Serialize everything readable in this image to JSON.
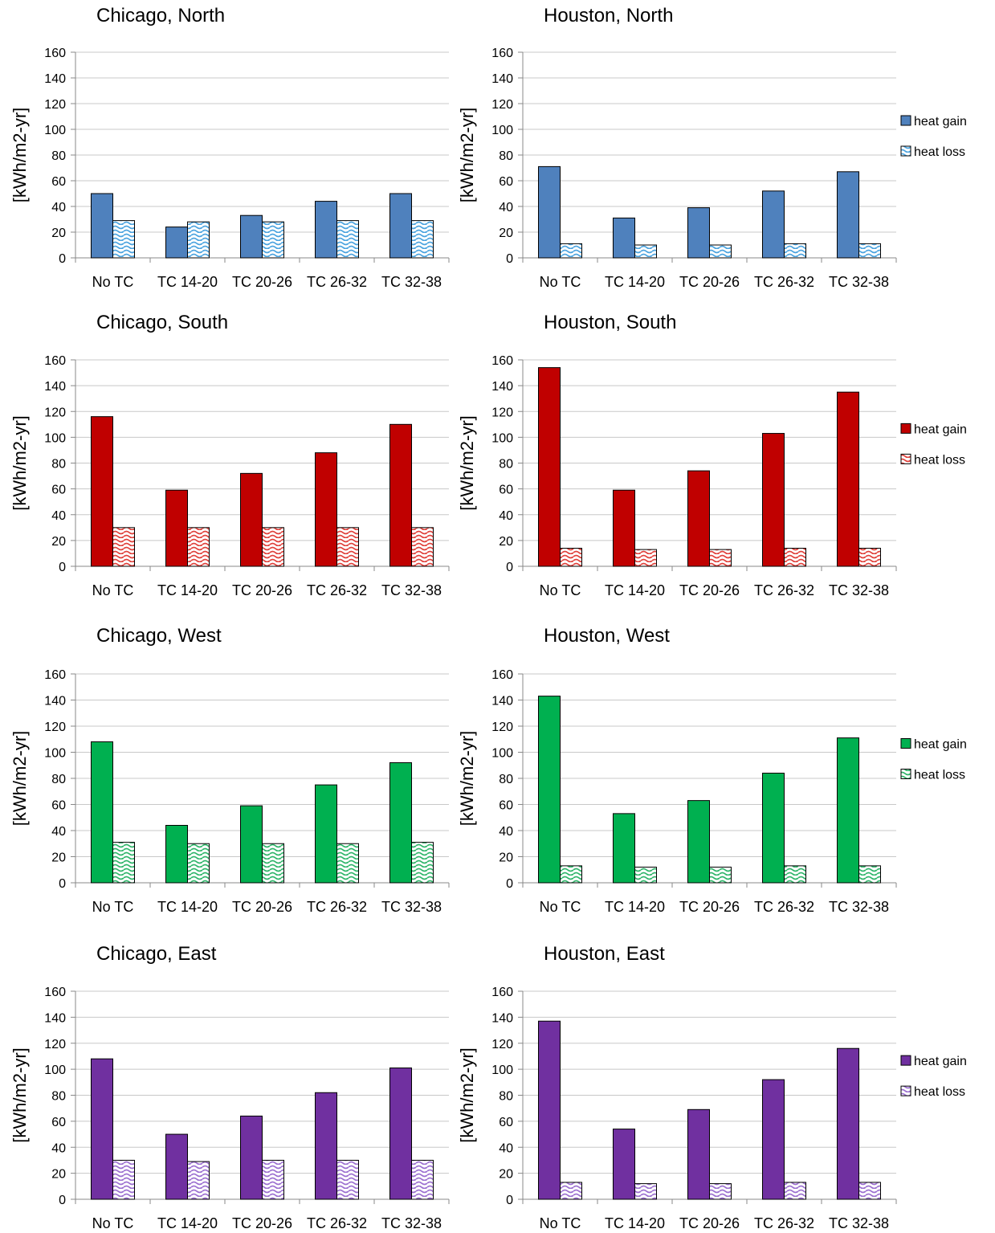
{
  "chart_data": [
    {
      "type": "bar",
      "title": "Chicago,  North",
      "ylabel": "[kWh/m2-yr]",
      "xlabel": "",
      "ylim": [
        0,
        160
      ],
      "yticks": [
        0,
        20,
        40,
        60,
        80,
        100,
        120,
        140,
        160
      ],
      "categories": [
        "No TC",
        "TC 14-20",
        "TC 20-26",
        "TC 26-32",
        "TC 32-38"
      ],
      "colors": {
        "gain": "#4f81bd",
        "loss_pattern": "#4aa3df"
      },
      "series": [
        {
          "name": "heat gain",
          "values": [
            50,
            24,
            33,
            44,
            50
          ]
        },
        {
          "name": "heat loss",
          "values": [
            29,
            28,
            28,
            29,
            29
          ]
        }
      ],
      "legend": "none"
    },
    {
      "type": "bar",
      "title": "Houston,  North",
      "ylabel": "[kWh/m2-yr]",
      "xlabel": "",
      "ylim": [
        0,
        160
      ],
      "yticks": [
        0,
        20,
        40,
        60,
        80,
        100,
        120,
        140,
        160
      ],
      "categories": [
        "No TC",
        "TC 14-20",
        "TC 20-26",
        "TC 26-32",
        "TC 32-38"
      ],
      "colors": {
        "gain": "#4f81bd",
        "loss_pattern": "#4aa3df"
      },
      "series": [
        {
          "name": "heat gain",
          "values": [
            71,
            31,
            39,
            52,
            67
          ]
        },
        {
          "name": "heat loss",
          "values": [
            11,
            10,
            10,
            11,
            11
          ]
        }
      ],
      "legend": "right"
    },
    {
      "type": "bar",
      "title": "Chicago, South",
      "ylabel": "[kWh/m2-yr]",
      "xlabel": "",
      "ylim": [
        0,
        160
      ],
      "yticks": [
        0,
        20,
        40,
        60,
        80,
        100,
        120,
        140,
        160
      ],
      "categories": [
        "No TC",
        "TC 14-20",
        "TC 20-26",
        "TC 26-32",
        "TC 32-38"
      ],
      "colors": {
        "gain": "#c00000",
        "loss_pattern": "#e0403a"
      },
      "series": [
        {
          "name": "heat gain",
          "values": [
            116,
            59,
            72,
            88,
            110
          ]
        },
        {
          "name": "heat loss",
          "values": [
            30,
            30,
            30,
            30,
            30
          ]
        }
      ],
      "legend": "none"
    },
    {
      "type": "bar",
      "title": "Houston, South",
      "ylabel": "[kWh/m2-yr]",
      "xlabel": "",
      "ylim": [
        0,
        160
      ],
      "yticks": [
        0,
        20,
        40,
        60,
        80,
        100,
        120,
        140,
        160
      ],
      "categories": [
        "No TC",
        "TC 14-20",
        "TC 20-26",
        "TC 26-32",
        "TC 32-38"
      ],
      "colors": {
        "gain": "#c00000",
        "loss_pattern": "#e0403a"
      },
      "series": [
        {
          "name": "heat gain",
          "values": [
            154,
            59,
            74,
            103,
            135
          ]
        },
        {
          "name": "heat loss",
          "values": [
            14,
            13,
            13,
            14,
            14
          ]
        }
      ],
      "legend": "right"
    },
    {
      "type": "bar",
      "title": "Chicago, West",
      "ylabel": "[kWh/m2-yr]",
      "xlabel": "",
      "ylim": [
        0,
        160
      ],
      "yticks": [
        0,
        20,
        40,
        60,
        80,
        100,
        120,
        140,
        160
      ],
      "categories": [
        "No TC",
        "TC 14-20",
        "TC 20-26",
        "TC 26-32",
        "TC 32-38"
      ],
      "colors": {
        "gain": "#00b050",
        "loss_pattern": "#2fb56a"
      },
      "series": [
        {
          "name": "heat gain",
          "values": [
            108,
            44,
            59,
            75,
            92
          ]
        },
        {
          "name": "heat loss",
          "values": [
            31,
            30,
            30,
            30,
            31
          ]
        }
      ],
      "legend": "none"
    },
    {
      "type": "bar",
      "title": "Houston, West",
      "ylabel": "[kWh/m2-yr]",
      "xlabel": "",
      "ylim": [
        0,
        160
      ],
      "yticks": [
        0,
        20,
        40,
        60,
        80,
        100,
        120,
        140,
        160
      ],
      "categories": [
        "No TC",
        "TC 14-20",
        "TC 20-26",
        "TC 26-32",
        "TC 32-38"
      ],
      "colors": {
        "gain": "#00b050",
        "loss_pattern": "#2fb56a"
      },
      "series": [
        {
          "name": "heat gain",
          "values": [
            143,
            53,
            63,
            84,
            111
          ]
        },
        {
          "name": "heat loss",
          "values": [
            13,
            12,
            12,
            13,
            13
          ]
        }
      ],
      "legend": "right"
    },
    {
      "type": "bar",
      "title": "Chicago, East",
      "ylabel": "[kWh/m2-yr]",
      "xlabel": "",
      "ylim": [
        0,
        160
      ],
      "yticks": [
        0,
        20,
        40,
        60,
        80,
        100,
        120,
        140,
        160
      ],
      "categories": [
        "No TC",
        "TC 14-20",
        "TC 20-26",
        "TC 26-32",
        "TC 32-38"
      ],
      "colors": {
        "gain": "#7030a0",
        "loss_pattern": "#9b6fd0"
      },
      "series": [
        {
          "name": "heat gain",
          "values": [
            108,
            50,
            64,
            82,
            101
          ]
        },
        {
          "name": "heat loss",
          "values": [
            30,
            29,
            30,
            30,
            30
          ]
        }
      ],
      "legend": "none"
    },
    {
      "type": "bar",
      "title": "Houston, East",
      "ylabel": "[kWh/m2-yr]",
      "xlabel": "",
      "ylim": [
        0,
        160
      ],
      "yticks": [
        0,
        20,
        40,
        60,
        80,
        100,
        120,
        140,
        160
      ],
      "categories": [
        "No TC",
        "TC 14-20",
        "TC 20-26",
        "TC 26-32",
        "TC 32-38"
      ],
      "colors": {
        "gain": "#7030a0",
        "loss_pattern": "#9b6fd0"
      },
      "series": [
        {
          "name": "heat gain",
          "values": [
            137,
            54,
            69,
            92,
            116
          ]
        },
        {
          "name": "heat loss",
          "values": [
            13,
            12,
            12,
            13,
            13
          ]
        }
      ],
      "legend": "right"
    }
  ]
}
